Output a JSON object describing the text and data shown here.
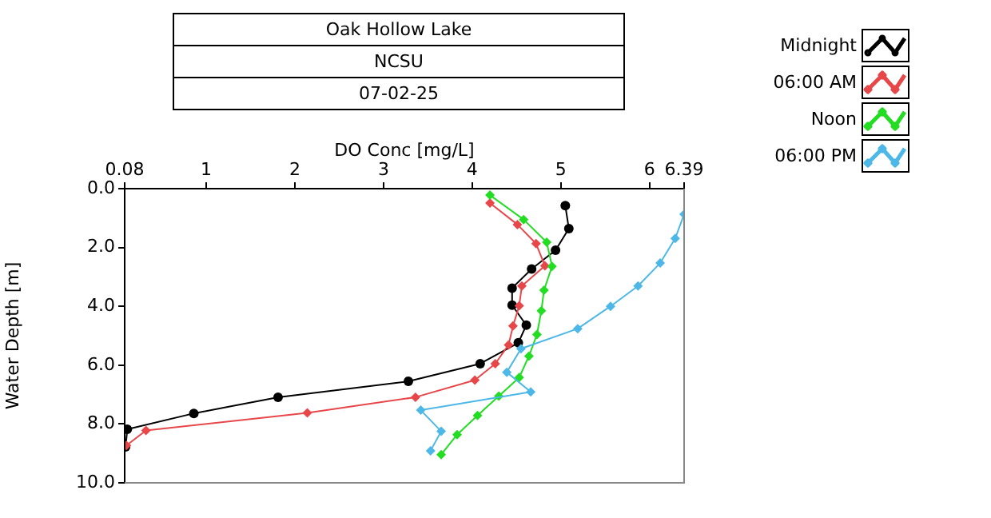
{
  "chart_data": {
    "type": "line",
    "title": "Oak Hollow Lake",
    "subtitle": "NCSU",
    "annotations": [
      "07-02-25"
    ],
    "xlabel": "DO Conc [mg/L]",
    "ylabel": "Water Depth [m]",
    "xlim": [
      0.08,
      6.39
    ],
    "xticks": [
      0.08,
      1,
      2,
      3,
      4,
      5,
      6,
      6.39
    ],
    "ylim": [
      10,
      0
    ],
    "yticks": [
      {
        "value": 0,
        "label": "0.0"
      },
      {
        "value": 2,
        "label": "2.0"
      },
      {
        "value": 4,
        "label": "4.0"
      },
      {
        "value": 6,
        "label": "6.0"
      },
      {
        "value": 8,
        "label": "8.0"
      },
      {
        "value": 10,
        "label": "10.0"
      }
    ],
    "grid": false,
    "legend": "top right",
    "line_style": "solid",
    "series": [
      {
        "name": "Midnight",
        "color": "#000000",
        "marker": "circle",
        "x": [
          5.05,
          5.09,
          4.94,
          4.67,
          4.45,
          4.45,
          4.61,
          4.52,
          4.09,
          3.28,
          1.81,
          0.86,
          0.11,
          0.09
        ],
        "values": [
          0.58,
          1.36,
          2.09,
          2.73,
          3.38,
          3.96,
          4.64,
          5.24,
          5.95,
          6.55,
          7.09,
          7.64,
          8.18,
          8.78
        ]
      },
      {
        "name": "06:00 AM",
        "color": "#e8474a",
        "marker": "diamond",
        "x": [
          4.2,
          4.51,
          4.72,
          4.82,
          4.56,
          4.53,
          4.46,
          4.41,
          4.26,
          4.03,
          3.36,
          2.14,
          0.32,
          0.1
        ],
        "values": [
          0.49,
          1.22,
          1.87,
          2.62,
          3.31,
          3.98,
          4.67,
          5.31,
          5.95,
          6.51,
          7.09,
          7.62,
          8.22,
          8.73
        ]
      },
      {
        "name": "Noon",
        "color": "#22dd22",
        "marker": "diamond",
        "x": [
          4.2,
          4.58,
          4.84,
          4.9,
          4.81,
          4.78,
          4.73,
          4.64,
          4.53,
          4.3,
          4.06,
          3.83,
          3.65
        ],
        "values": [
          0.22,
          1.05,
          1.82,
          2.64,
          3.45,
          4.15,
          4.96,
          5.69,
          6.42,
          7.05,
          7.71,
          8.36,
          9.04
        ]
      },
      {
        "name": "06:00 PM",
        "color": "#4db8e8",
        "marker": "diamond",
        "x": [
          6.39,
          6.29,
          6.12,
          5.87,
          5.56,
          5.19,
          4.55,
          4.39,
          4.66,
          3.42,
          3.65,
          3.53
        ],
        "values": [
          0.87,
          1.69,
          2.53,
          3.31,
          4.0,
          4.76,
          5.44,
          6.24,
          6.91,
          7.53,
          8.25,
          8.91
        ]
      }
    ]
  }
}
